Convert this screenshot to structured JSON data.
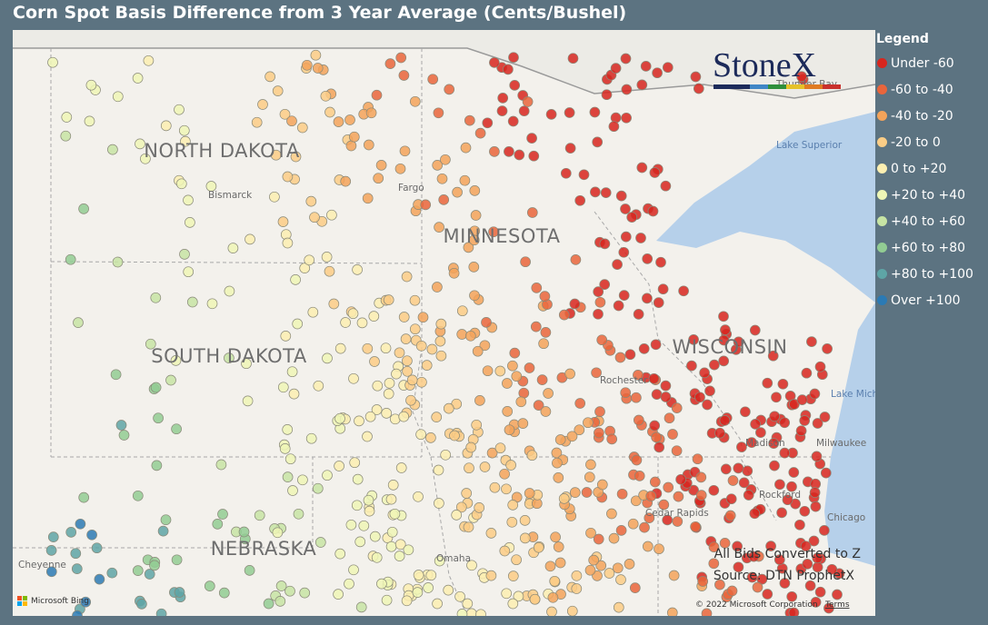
{
  "title": "Corn Spot Basis Difference from 3 Year Average (Cents/Bushel)",
  "legend": {
    "title": "Legend",
    "items": [
      {
        "label": "Under -60",
        "color": "#d7261e"
      },
      {
        "label": "-60 to -40",
        "color": "#e9653b"
      },
      {
        "label": "-40 to -20",
        "color": "#f3a35a"
      },
      {
        "label": "-20 to 0",
        "color": "#fbcd86"
      },
      {
        "label": "0 to +20",
        "color": "#fcefb1"
      },
      {
        "label": "+20 to +40",
        "color": "#eef6b6"
      },
      {
        "label": "+40 to +60",
        "color": "#c7e4a4"
      },
      {
        "label": "+60 to +80",
        "color": "#92cc93"
      },
      {
        "label": "+80 to +100",
        "color": "#5ea5a6"
      },
      {
        "label": "Over +100",
        "color": "#2b7ab4"
      }
    ]
  },
  "map": {
    "states": [
      "NORTH DAKOTA",
      "MINNESOTA",
      "SOUTH DAKOTA",
      "WISCONSIN",
      "NEBRASKA"
    ],
    "cities": [
      "Bismarck",
      "Fargo",
      "Rochester",
      "Madison",
      "Milwaukee",
      "Rockford",
      "Chicago",
      "Thunder Bay",
      "Cheyenne",
      "Omaha",
      "Cedar Rapids"
    ],
    "lakes": [
      "Lake Superior",
      "Lake Michigan"
    ],
    "logo": "StoneX",
    "notes": [
      "All Bids Converted to Z",
      "Source: DTN ProphetX"
    ],
    "attribution": {
      "provider": "Microsoft Bing",
      "copyright": "© 2022 Microsoft Corporation",
      "terms": "Terms"
    }
  }
}
